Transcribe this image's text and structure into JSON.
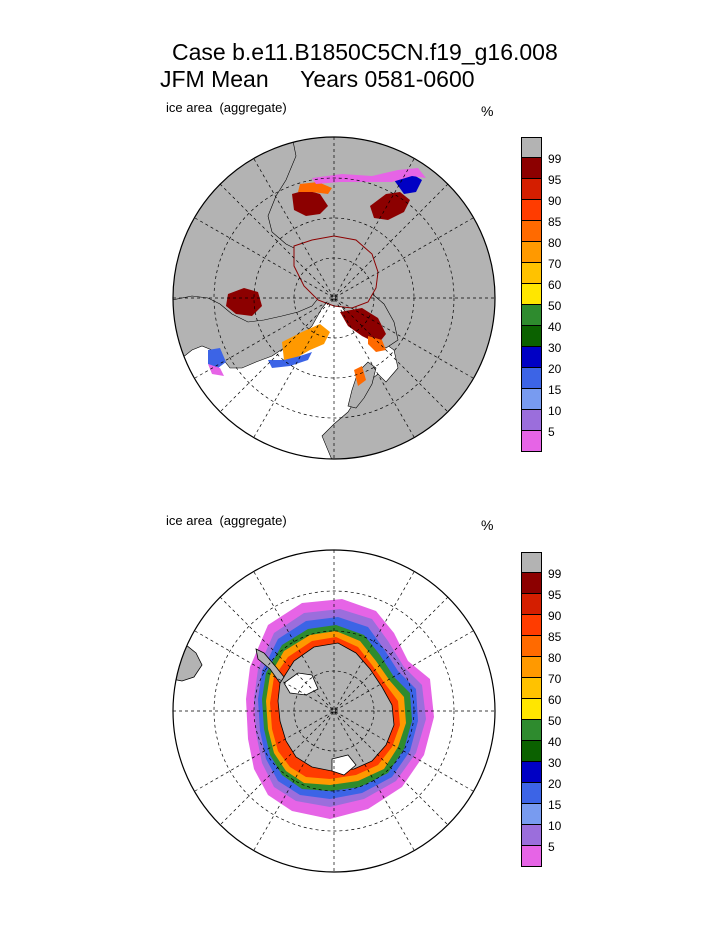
{
  "header": {
    "line1": "Case b.e11.B1850C5CN.f19_g16.008",
    "line2": "JFM Mean     Years 0581-0600"
  },
  "panels": [
    {
      "id": "north",
      "label": "ice area  (aggregate)",
      "unit": "%",
      "hemisphere": "Northern Hemisphere polar stereographic"
    },
    {
      "id": "south",
      "label": "ice area  (aggregate)",
      "unit": "%",
      "hemisphere": "Southern Hemisphere polar stereographic"
    }
  ],
  "legend": {
    "boundary_labels": [
      "99",
      "95",
      "90",
      "85",
      "80",
      "70",
      "60",
      "50",
      "40",
      "30",
      "20",
      "15",
      "10",
      "5"
    ],
    "colors": [
      "#b3b3b3",
      "#8c0000",
      "#d41e00",
      "#ff3c00",
      "#ff6a00",
      "#ff9900",
      "#ffc200",
      "#ffe600",
      "#2e8b2e",
      "#0b6100",
      "#0000c4",
      "#3c64e6",
      "#789bf0",
      "#9b6edc",
      "#e664e6"
    ]
  },
  "map_colors": {
    "land": "#b3b3b3",
    "ocean": "#ffffff",
    "grid": "#000000"
  }
}
